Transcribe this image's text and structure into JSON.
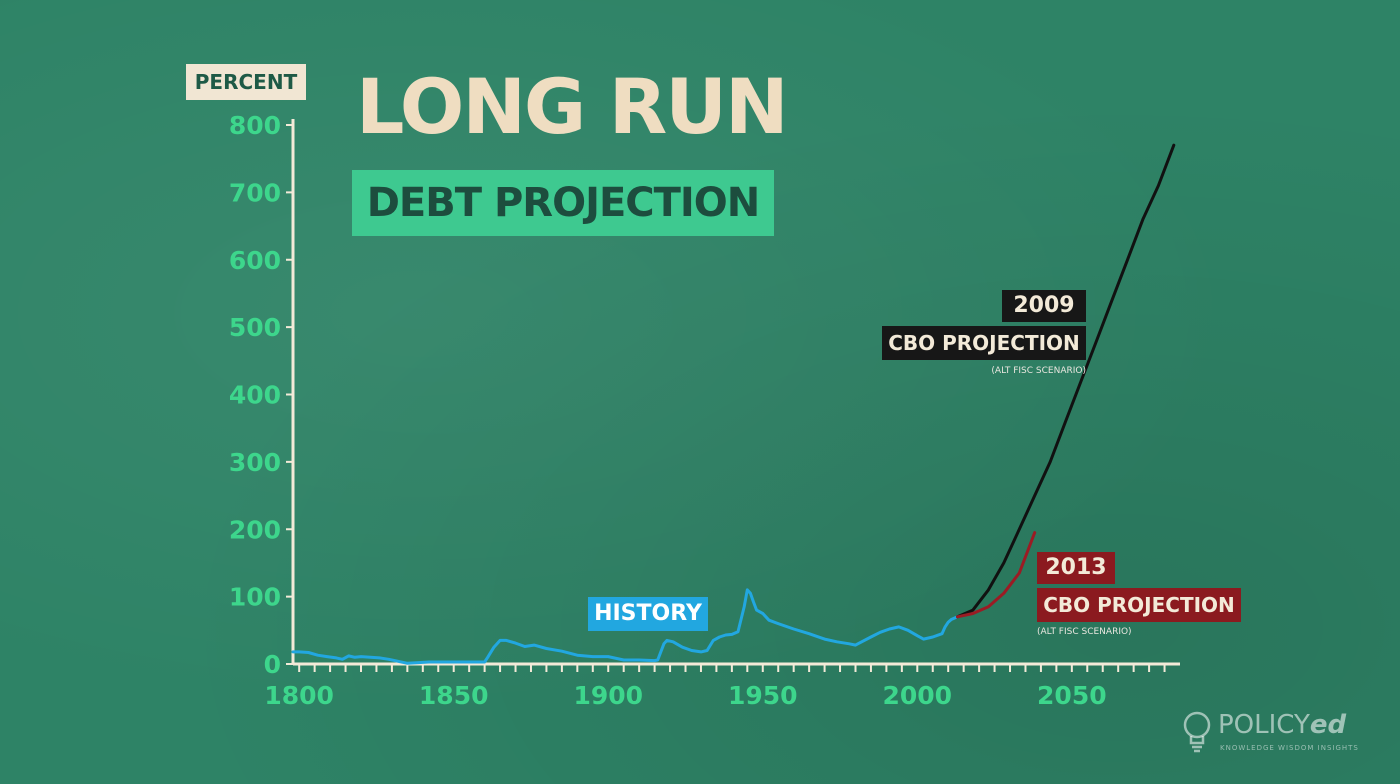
{
  "header": {
    "title": "LONG RUN",
    "subtitle": "DEBT PROJECTION"
  },
  "labels": {
    "history": "HISTORY",
    "cbo2009_year": "2009",
    "cbo2009_name": "CBO PROJECTION",
    "cbo2009_note": "(ALT FISC SCENARIO)",
    "cbo2013_year": "2013",
    "cbo2013_name": "CBO PROJECTION",
    "cbo2013_note": "(ALT FISC SCENARIO)"
  },
  "logo": {
    "name_prefix": "POLICY",
    "name_suffix": "ed",
    "tagline": "KNOWLEDGE WISDOM INSIGHTS"
  },
  "colors": {
    "background": "#2e8366",
    "axis": "#f3ead8",
    "tick_text": "#3dd68c",
    "history": "#22a7e0",
    "cbo2009": "#111111",
    "cbo2013": "#9b1b24"
  },
  "chart_data": {
    "type": "line",
    "ylabel": "PERCENT",
    "xlabel": "",
    "xlim": [
      1798,
      2085
    ],
    "ylim": [
      0,
      800
    ],
    "x_ticks": [
      1800,
      1850,
      1900,
      1950,
      2000,
      2050
    ],
    "y_ticks": [
      0,
      100,
      200,
      300,
      400,
      500,
      600,
      700,
      800
    ],
    "grid": false,
    "series": [
      {
        "name": "HISTORY",
        "x": [
          1798,
          1800,
          1803,
          1806,
          1809,
          1812,
          1814,
          1816,
          1818,
          1820,
          1823,
          1826,
          1829,
          1832,
          1835,
          1838,
          1842,
          1846,
          1850,
          1855,
          1860,
          1861,
          1863,
          1865,
          1867,
          1870,
          1873,
          1876,
          1880,
          1885,
          1890,
          1895,
          1900,
          1905,
          1910,
          1915,
          1916,
          1918,
          1919,
          1921,
          1924,
          1927,
          1930,
          1932,
          1934,
          1936,
          1938,
          1940,
          1942,
          1944,
          1945,
          1946,
          1947,
          1948,
          1950,
          1952,
          1955,
          1960,
          1965,
          1970,
          1974,
          1978,
          1980,
          1982,
          1985,
          1988,
          1991,
          1994,
          1997,
          2000,
          2002,
          2005,
          2008,
          2009,
          2010,
          2011,
          2013
        ],
        "y": [
          18,
          18,
          17,
          13,
          11,
          9,
          7,
          12,
          10,
          11,
          10,
          9,
          7,
          4,
          1,
          2,
          3,
          3,
          3,
          3,
          3,
          10,
          25,
          35,
          35,
          31,
          26,
          28,
          23,
          19,
          13,
          11,
          11,
          6,
          6,
          5,
          6,
          30,
          35,
          33,
          25,
          20,
          18,
          20,
          35,
          40,
          43,
          44,
          48,
          85,
          110,
          105,
          92,
          80,
          75,
          65,
          60,
          52,
          45,
          37,
          33,
          30,
          28,
          33,
          40,
          47,
          52,
          55,
          50,
          42,
          37,
          40,
          45,
          55,
          62,
          66,
          70
        ]
      },
      {
        "name": "2009 CBO PROJECTION",
        "x": [
          2013,
          2018,
          2023,
          2028,
          2033,
          2038,
          2043,
          2048,
          2053,
          2058,
          2063,
          2068,
          2073,
          2078,
          2083
        ],
        "y": [
          70,
          80,
          110,
          150,
          200,
          250,
          300,
          360,
          420,
          480,
          540,
          600,
          660,
          710,
          770
        ]
      },
      {
        "name": "2013 CBO PROJECTION",
        "x": [
          2013,
          2018,
          2023,
          2028,
          2033,
          2038
        ],
        "y": [
          70,
          75,
          85,
          105,
          135,
          195
        ]
      }
    ]
  }
}
